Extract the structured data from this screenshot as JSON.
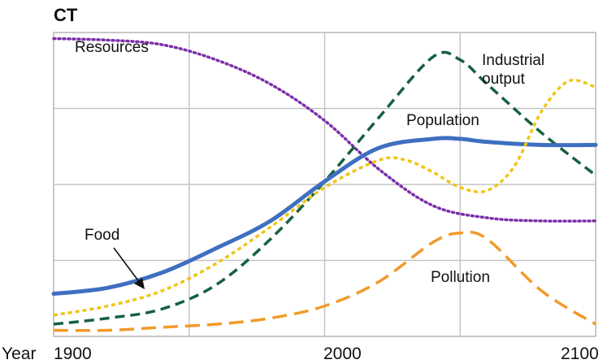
{
  "chart_data": {
    "type": "line",
    "title": "CT",
    "xlabel": "Year",
    "x_ticks": [
      "1900",
      "2000",
      "2100"
    ],
    "x_range": [
      1900,
      2100
    ],
    "y_range": [
      0,
      1
    ],
    "y_values_normalized": true,
    "grid": "on",
    "series": [
      {
        "name": "Resources",
        "style": "dotted",
        "color": "#7b2fa8",
        "x": [
          1900,
          1920,
          1940,
          1960,
          1980,
          2000,
          2020,
          2040,
          2060,
          2080,
          2100
        ],
        "y": [
          0.98,
          0.975,
          0.96,
          0.91,
          0.83,
          0.71,
          0.55,
          0.43,
          0.39,
          0.38,
          0.38
        ]
      },
      {
        "name": "Industrial\noutput",
        "style": "dashed",
        "color": "#16613f",
        "x": [
          1900,
          1920,
          1940,
          1960,
          1980,
          2000,
          2020,
          2040,
          2050,
          2060,
          2080,
          2100
        ],
        "y": [
          0.04,
          0.06,
          0.09,
          0.17,
          0.32,
          0.51,
          0.72,
          0.92,
          0.91,
          0.83,
          0.67,
          0.53
        ]
      },
      {
        "name": "Population",
        "style": "solid",
        "color": "#3e6fc0",
        "x": [
          1900,
          1920,
          1940,
          1960,
          1980,
          2000,
          2020,
          2040,
          2050,
          2060,
          2080,
          2100
        ],
        "y": [
          0.14,
          0.16,
          0.21,
          0.29,
          0.38,
          0.51,
          0.62,
          0.65,
          0.65,
          0.64,
          0.63,
          0.63
        ]
      },
      {
        "name": "Food",
        "style": "dotted",
        "color": "#f2c417",
        "x": [
          1900,
          1920,
          1940,
          1960,
          1980,
          2000,
          2020,
          2030,
          2040,
          2050,
          2060,
          2070,
          2080,
          2090,
          2100
        ],
        "y": [
          0.07,
          0.1,
          0.15,
          0.24,
          0.36,
          0.49,
          0.58,
          0.58,
          0.54,
          0.49,
          0.48,
          0.56,
          0.74,
          0.84,
          0.82
        ]
      },
      {
        "name": "Pollution",
        "style": "dashed",
        "color": "#f19a2a",
        "x": [
          1900,
          1920,
          1940,
          1960,
          1980,
          2000,
          2020,
          2040,
          2050,
          2060,
          2080,
          2100
        ],
        "y": [
          0.02,
          0.02,
          0.03,
          0.04,
          0.06,
          0.1,
          0.18,
          0.31,
          0.34,
          0.32,
          0.15,
          0.04
        ]
      }
    ],
    "annotations": [
      {
        "text": "Food",
        "points_to_series": "Food",
        "arrow": true
      }
    ]
  }
}
